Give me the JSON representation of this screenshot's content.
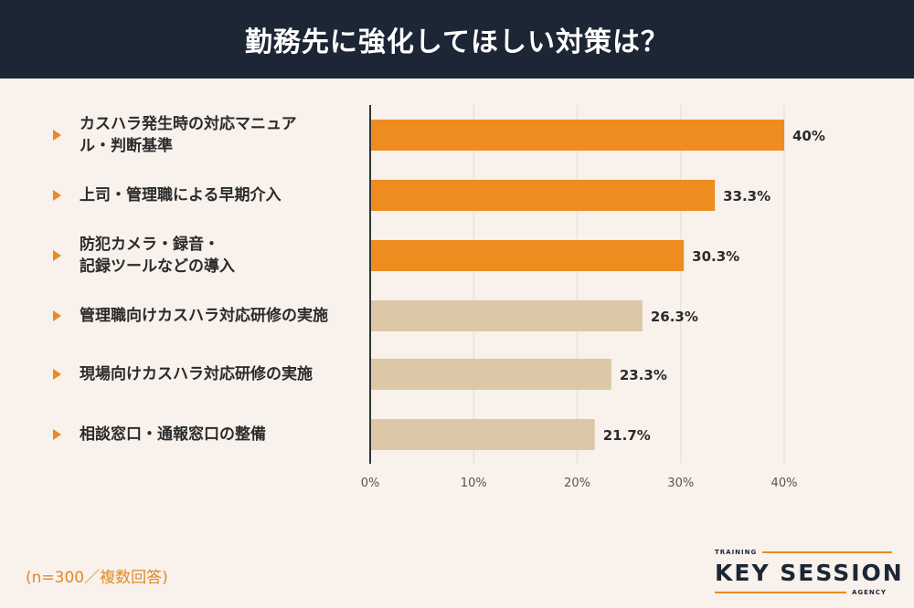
{
  "header": {
    "title": "勤務先に強化してほしい対策は？"
  },
  "chart_data": {
    "type": "bar",
    "orientation": "horizontal",
    "title": "勤務先に強化してほしい対策は？",
    "categories": [
      [
        "カスハラ発生時の対応マニュア",
        "ル・判断基準"
      ],
      [
        "上司・管理職による早期介入"
      ],
      [
        "防犯カメラ・録音・",
        "記録ツールなどの導入"
      ],
      [
        "管理職向けカスハラ対応研修の実施"
      ],
      [
        "現場向けカスハラ対応研修の実施"
      ],
      [
        "相談窓口・通報窓口の整備"
      ]
    ],
    "values": [
      40,
      33.3,
      30.3,
      26.3,
      23.3,
      21.7
    ],
    "value_labels": [
      "40%",
      "33.3%",
      "30.3%",
      "26.3%",
      "23.3%",
      "21.7%"
    ],
    "bar_colors": [
      "#ef8c20",
      "#ef8c20",
      "#ef8c20",
      "#dcc8a6",
      "#dcc8a6",
      "#dcc8a6"
    ],
    "xlim": [
      0,
      40
    ],
    "xticks": [
      "0%",
      "10%",
      "20%",
      "30%",
      "40%"
    ],
    "grid": true,
    "xlabel": "",
    "ylabel": ""
  },
  "note": "(n=300／複数回答)",
  "logo": {
    "top_text": "TRAINING",
    "main_text": "KEY SESSION",
    "bottom_text": "AGENCY"
  },
  "colors": {
    "header_bg": "#1c2634",
    "accent": "#ef8c20",
    "secondary_bar": "#dcc8a6",
    "background": "#f8f1ec"
  }
}
